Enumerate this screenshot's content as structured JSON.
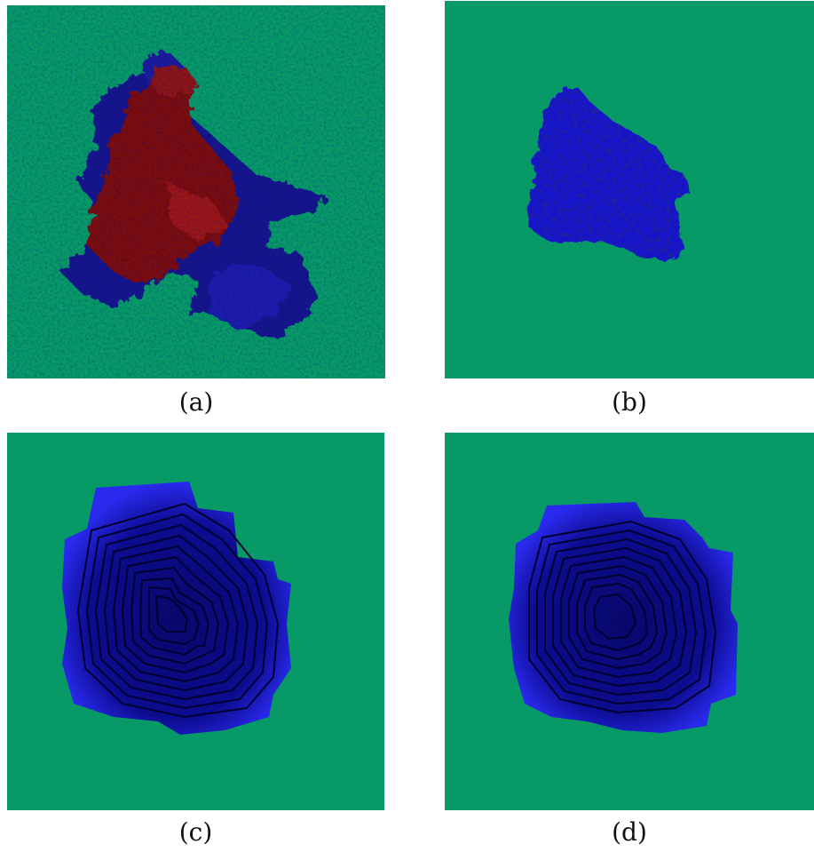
{
  "colors": {
    "background": "#079966",
    "cluster_red": "#7a1010",
    "cluster_blue": "#1a1ab0",
    "cluster_dark": "#0a0a50"
  },
  "panels": [
    {
      "id": "a",
      "caption": "(a)"
    },
    {
      "id": "b",
      "caption": "(b)"
    },
    {
      "id": "c",
      "caption": "(c)"
    },
    {
      "id": "d",
      "caption": "(d)"
    }
  ]
}
